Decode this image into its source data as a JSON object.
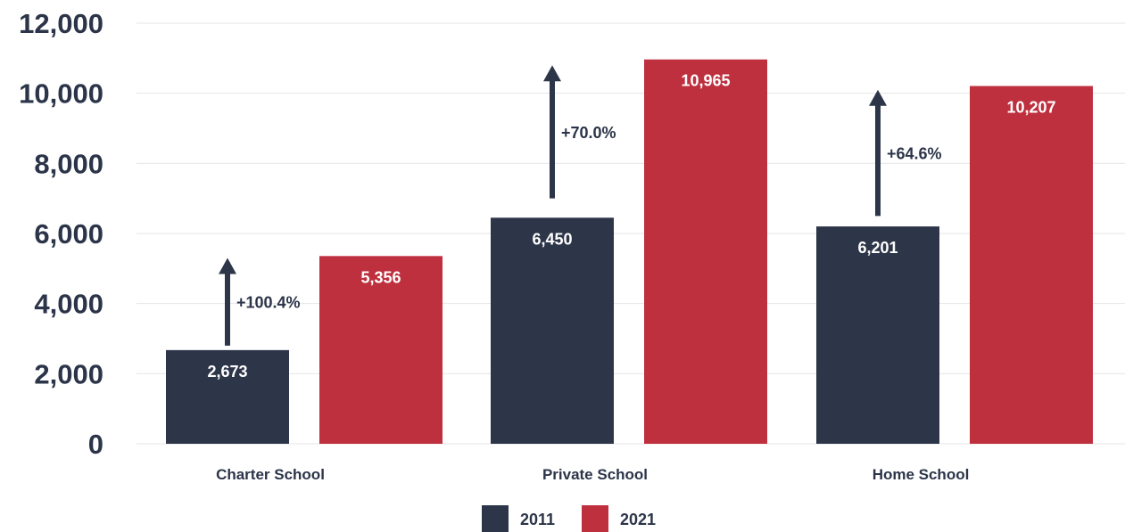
{
  "chart_data": {
    "type": "bar",
    "title": "",
    "xlabel": "",
    "ylabel": "",
    "ylim": [
      0,
      12000
    ],
    "yticks": [
      0,
      2000,
      4000,
      6000,
      8000,
      10000,
      12000
    ],
    "ytick_labels": [
      "0",
      "2,000",
      "4,000",
      "6,000",
      "8,000",
      "10,000",
      "12,000"
    ],
    "grid": true,
    "legend_position": "bottom-center",
    "categories": [
      "Charter School",
      "Private School",
      "Home School"
    ],
    "series": [
      {
        "name": "2011",
        "color": "#2d3649",
        "values": [
          2673,
          6450,
          6201
        ],
        "labels": [
          "2,673",
          "6,450",
          "6,201"
        ]
      },
      {
        "name": "2021",
        "color": "#bf303f",
        "values": [
          5356,
          10965,
          10207
        ],
        "labels": [
          "5,356",
          "10,965",
          "10,207"
        ]
      }
    ],
    "annotations": [
      {
        "category": "Charter School",
        "text": "+100.4%",
        "arrow_from": 2800,
        "arrow_to": 5300
      },
      {
        "category": "Private School",
        "text": "+70.0%",
        "arrow_from": 7000,
        "arrow_to": 10800
      },
      {
        "category": "Home School",
        "text": "+64.6%",
        "arrow_from": 6500,
        "arrow_to": 10100
      }
    ],
    "colors": {
      "text": "#2b3448",
      "grid": "#e6e6e6",
      "arrow": "#2d3649"
    }
  }
}
